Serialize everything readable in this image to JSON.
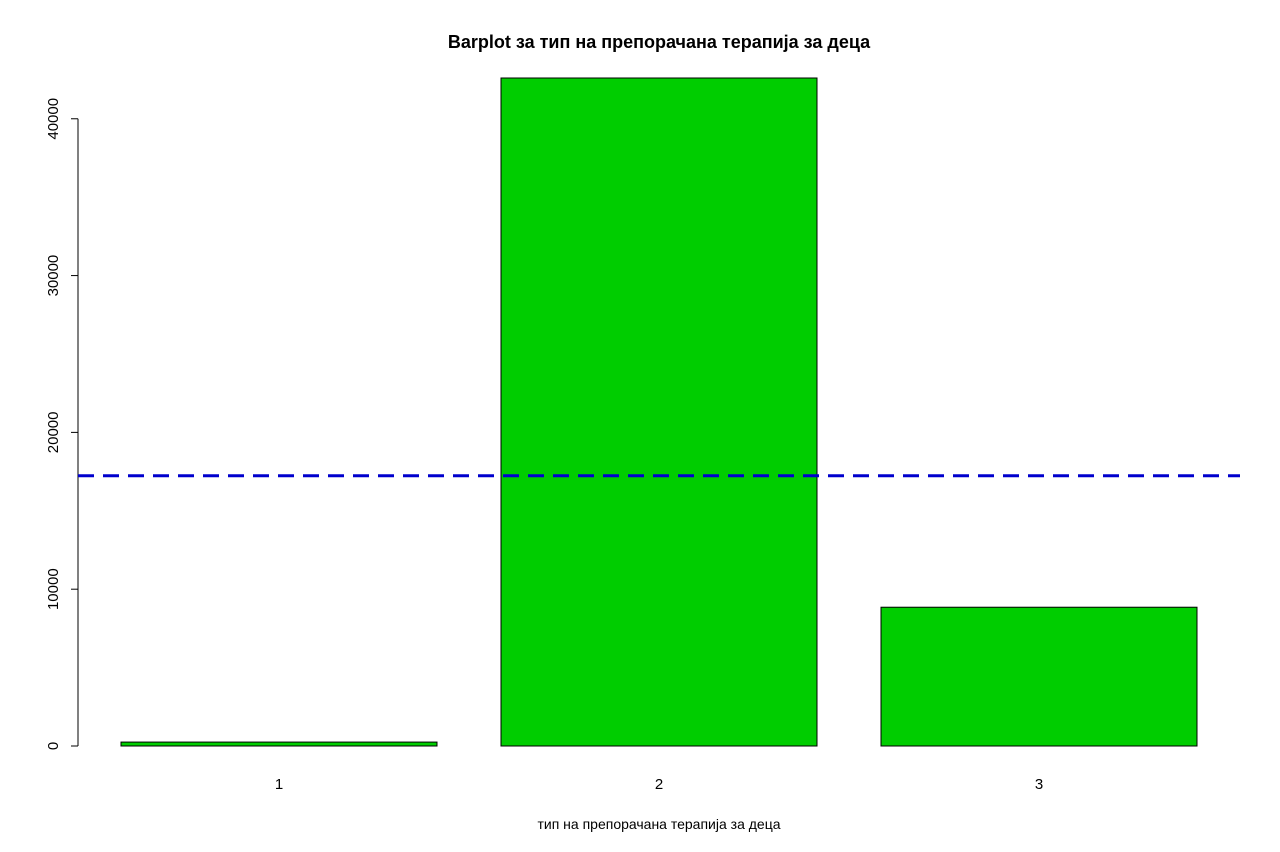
{
  "chart_data": {
    "type": "bar",
    "title": "Barplot за  тип на препорачана терапија за деца",
    "xlabel": "тип на препорачана терапија за деца",
    "ylabel": "",
    "categories": [
      "1",
      "2",
      "3"
    ],
    "values": [
      250,
      42600,
      8850
    ],
    "ylim": [
      0,
      42600
    ],
    "yticks": [
      0,
      10000,
      20000,
      30000,
      40000
    ],
    "ytick_labels": [
      "0",
      "10000",
      "20000",
      "30000",
      "40000"
    ],
    "reference_line": {
      "value": 17233,
      "style": "dashed",
      "color": "#0000cd"
    },
    "bar_color": "#00cd00",
    "bar_border_color": "#000000",
    "grid": false,
    "legend": "none"
  }
}
